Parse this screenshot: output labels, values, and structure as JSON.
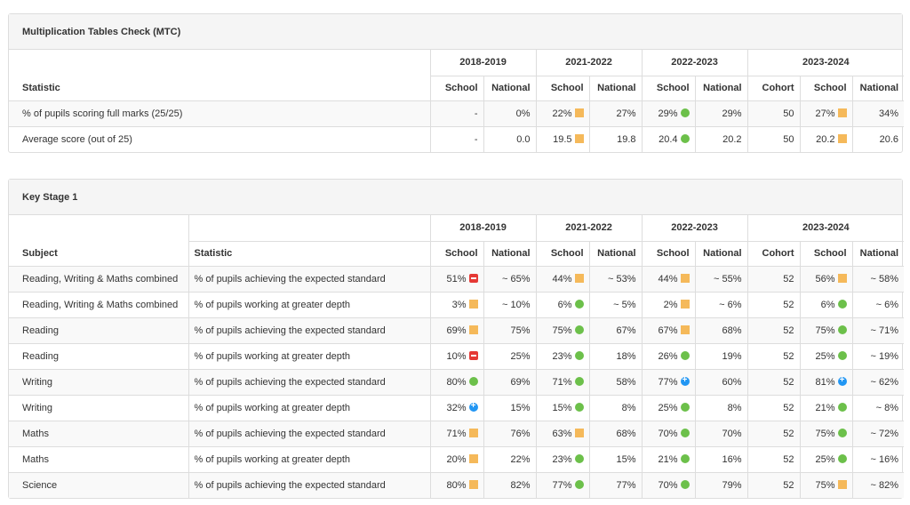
{
  "colors": {
    "amber": "#f5b95a",
    "green": "#6cc04a",
    "blue": "#2196f3",
    "red": "#e53935",
    "header_bg": "#f5f5f5",
    "border": "#dddddd"
  },
  "legend_icons": {
    "amber": "amber-square-icon",
    "green": "green-circle-icon",
    "blue": "blue-plus-circle-icon",
    "red": "red-minus-square-icon"
  },
  "mtc": {
    "title": "Multiplication Tables Check (MTC)",
    "years": [
      "2018-2019",
      "2021-2022",
      "2022-2023",
      "2023-2024"
    ],
    "col_statistic": "Statistic",
    "col_school": "School",
    "col_national": "National",
    "col_cohort": "Cohort",
    "rows": [
      {
        "statistic": "% of pupils scoring full marks (25/25)",
        "s1819": "-",
        "n1819": "0%",
        "s2122": "22%",
        "i2122": "amber",
        "n2122": "27%",
        "s2223": "29%",
        "i2223": "green",
        "n2223": "29%",
        "cohort": "50",
        "s2324": "27%",
        "i2324": "amber",
        "n2324": "34%"
      },
      {
        "statistic": "Average score (out of 25)",
        "s1819": "-",
        "n1819": "0.0",
        "s2122": "19.5",
        "i2122": "amber",
        "n2122": "19.8",
        "s2223": "20.4",
        "i2223": "green",
        "n2223": "20.2",
        "cohort": "50",
        "s2324": "20.2",
        "i2324": "amber",
        "n2324": "20.6"
      }
    ]
  },
  "ks1": {
    "title": "Key Stage 1",
    "years": [
      "2018-2019",
      "2021-2022",
      "2022-2023",
      "2023-2024"
    ],
    "col_subject": "Subject",
    "col_statistic": "Statistic",
    "col_school": "School",
    "col_national": "National",
    "col_cohort": "Cohort",
    "rows": [
      {
        "subject": "Reading, Writing & Maths combined",
        "statistic": "% of pupils achieving the expected standard",
        "s1819": "51%",
        "i1819": "red",
        "n1819": "~ 65%",
        "s2122": "44%",
        "i2122": "amber",
        "n2122": "~ 53%",
        "s2223": "44%",
        "i2223": "amber",
        "n2223": "~ 55%",
        "cohort": "52",
        "s2324": "56%",
        "i2324": "amber",
        "n2324": "~ 58%"
      },
      {
        "subject": "Reading, Writing & Maths combined",
        "statistic": "% of pupils working at greater depth",
        "s1819": "3%",
        "i1819": "amber",
        "n1819": "~ 10%",
        "s2122": "6%",
        "i2122": "green",
        "n2122": "~ 5%",
        "s2223": "2%",
        "i2223": "amber",
        "n2223": "~ 6%",
        "cohort": "52",
        "s2324": "6%",
        "i2324": "green",
        "n2324": "~ 6%"
      },
      {
        "subject": "Reading",
        "statistic": "% of pupils achieving the expected standard",
        "s1819": "69%",
        "i1819": "amber",
        "n1819": "75%",
        "s2122": "75%",
        "i2122": "green",
        "n2122": "67%",
        "s2223": "67%",
        "i2223": "amber",
        "n2223": "68%",
        "cohort": "52",
        "s2324": "75%",
        "i2324": "green",
        "n2324": "~ 71%"
      },
      {
        "subject": "Reading",
        "statistic": "% of pupils working at greater depth",
        "s1819": "10%",
        "i1819": "red",
        "n1819": "25%",
        "s2122": "23%",
        "i2122": "green",
        "n2122": "18%",
        "s2223": "26%",
        "i2223": "green",
        "n2223": "19%",
        "cohort": "52",
        "s2324": "25%",
        "i2324": "green",
        "n2324": "~ 19%"
      },
      {
        "subject": "Writing",
        "statistic": "% of pupils achieving the expected standard",
        "s1819": "80%",
        "i1819": "green",
        "n1819": "69%",
        "s2122": "71%",
        "i2122": "green",
        "n2122": "58%",
        "s2223": "77%",
        "i2223": "blue",
        "n2223": "60%",
        "cohort": "52",
        "s2324": "81%",
        "i2324": "blue",
        "n2324": "~ 62%"
      },
      {
        "subject": "Writing",
        "statistic": "% of pupils working at greater depth",
        "s1819": "32%",
        "i1819": "blue",
        "n1819": "15%",
        "s2122": "15%",
        "i2122": "green",
        "n2122": "8%",
        "s2223": "25%",
        "i2223": "green",
        "n2223": "8%",
        "cohort": "52",
        "s2324": "21%",
        "i2324": "green",
        "n2324": "~ 8%"
      },
      {
        "subject": "Maths",
        "statistic": "% of pupils achieving the expected standard",
        "s1819": "71%",
        "i1819": "amber",
        "n1819": "76%",
        "s2122": "63%",
        "i2122": "amber",
        "n2122": "68%",
        "s2223": "70%",
        "i2223": "green",
        "n2223": "70%",
        "cohort": "52",
        "s2324": "75%",
        "i2324": "green",
        "n2324": "~ 72%"
      },
      {
        "subject": "Maths",
        "statistic": "% of pupils working at greater depth",
        "s1819": "20%",
        "i1819": "amber",
        "n1819": "22%",
        "s2122": "23%",
        "i2122": "green",
        "n2122": "15%",
        "s2223": "21%",
        "i2223": "green",
        "n2223": "16%",
        "cohort": "52",
        "s2324": "25%",
        "i2324": "green",
        "n2324": "~ 16%"
      },
      {
        "subject": "Science",
        "statistic": "% of pupils achieving the expected standard",
        "s1819": "80%",
        "i1819": "amber",
        "n1819": "82%",
        "s2122": "77%",
        "i2122": "green",
        "n2122": "77%",
        "s2223": "70%",
        "i2223": "green",
        "n2223": "79%",
        "cohort": "52",
        "s2324": "75%",
        "i2324": "amber",
        "n2324": "~ 82%"
      }
    ]
  }
}
